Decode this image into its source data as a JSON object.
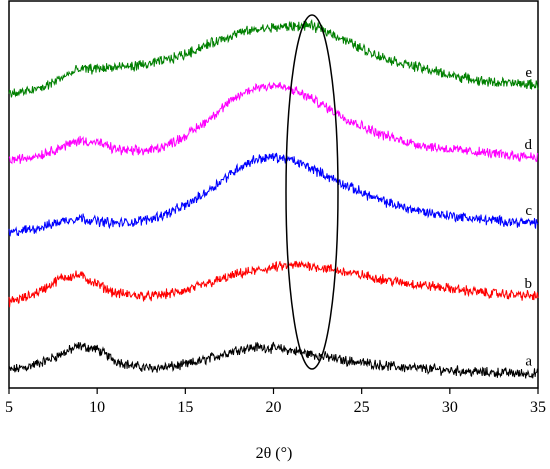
{
  "chart_data": {
    "type": "line",
    "xlabel": "2θ (°)",
    "ylabel": "",
    "xlim": [
      5,
      35
    ],
    "xticks": [
      5,
      10,
      15,
      20,
      25,
      30,
      35
    ],
    "yticks_shown": false,
    "grid": false,
    "legend": "inline labels at right end of each trace",
    "annotation": "ellipse highlighting region near 2θ ≈ 22°",
    "series": [
      {
        "name": "a",
        "color": "#000000",
        "offset": 0,
        "x": [
          5,
          6,
          7,
          8,
          9,
          10,
          11,
          12,
          13,
          14,
          15,
          16,
          17,
          18,
          19,
          20,
          21,
          22,
          23,
          24,
          25,
          26,
          27,
          28,
          29,
          30,
          31,
          32,
          33,
          34,
          35
        ],
        "y": [
          6,
          9,
          14,
          21,
          28,
          25,
          15,
          10,
          8,
          9,
          11,
          15,
          20,
          25,
          27,
          26,
          24,
          21,
          18,
          15,
          13,
          11,
          9,
          8,
          7,
          6,
          5,
          4,
          4,
          3,
          3
        ]
      },
      {
        "name": "b",
        "color": "#ff0000",
        "offset": 0,
        "x": [
          5,
          6,
          7,
          8,
          9,
          10,
          11,
          12,
          13,
          14,
          15,
          16,
          17,
          18,
          19,
          20,
          21,
          22,
          23,
          24,
          25,
          26,
          27,
          28,
          29,
          30,
          31,
          32,
          33,
          34,
          35
        ],
        "y": [
          68,
          72,
          80,
          90,
          92,
          84,
          76,
          74,
          73,
          75,
          78,
          83,
          88,
          93,
          96,
          99,
          101,
          101,
          98,
          95,
          92,
          89,
          86,
          84,
          82,
          80,
          78,
          76,
          75,
          74,
          73
        ]
      },
      {
        "name": "c",
        "color": "#0000ff",
        "offset": 0,
        "x": [
          5,
          6,
          7,
          8,
          9,
          10,
          11,
          12,
          13,
          14,
          15,
          16,
          17,
          18,
          19,
          20,
          21,
          22,
          23,
          24,
          25,
          26,
          27,
          28,
          29,
          30,
          31,
          32,
          33,
          34,
          35
        ],
        "y": [
          130,
          133,
          136,
          141,
          144,
          141,
          139,
          140,
          143,
          148,
          155,
          165,
          177,
          189,
          197,
          199,
          196,
          190,
          182,
          174,
          167,
          160,
          155,
          151,
          148,
          146,
          144,
          142,
          141,
          140,
          139
        ]
      },
      {
        "name": "d",
        "color": "#ff00ff",
        "offset": 0,
        "x": [
          5,
          6,
          7,
          8,
          9,
          10,
          11,
          12,
          13,
          14,
          15,
          16,
          17,
          18,
          19,
          20,
          21,
          22,
          23,
          24,
          25,
          26,
          27,
          28,
          29,
          30,
          31,
          32,
          33,
          34,
          35
        ],
        "y": [
          196,
          198,
          202,
          208,
          214,
          212,
          206,
          204,
          205,
          210,
          218,
          229,
          242,
          254,
          262,
          264,
          260,
          253,
          244,
          235,
          227,
          220,
          215,
          211,
          208,
          206,
          204,
          203,
          201,
          200,
          199
        ]
      },
      {
        "name": "e",
        "color": "#008000",
        "offset": 0,
        "x": [
          5,
          6,
          7,
          8,
          9,
          10,
          11,
          12,
          13,
          14,
          15,
          16,
          17,
          18,
          19,
          20,
          21,
          22,
          23,
          24,
          25,
          26,
          27,
          28,
          29,
          30,
          31,
          32,
          33,
          34,
          35
        ],
        "y": [
          256,
          258,
          262,
          271,
          278,
          279,
          280,
          281,
          283,
          287,
          292,
          299,
          305,
          311,
          314,
          316,
          317,
          318,
          313,
          305,
          297,
          290,
          285,
          281,
          277,
          273,
          270,
          267,
          266,
          265,
          264
        ]
      }
    ]
  }
}
